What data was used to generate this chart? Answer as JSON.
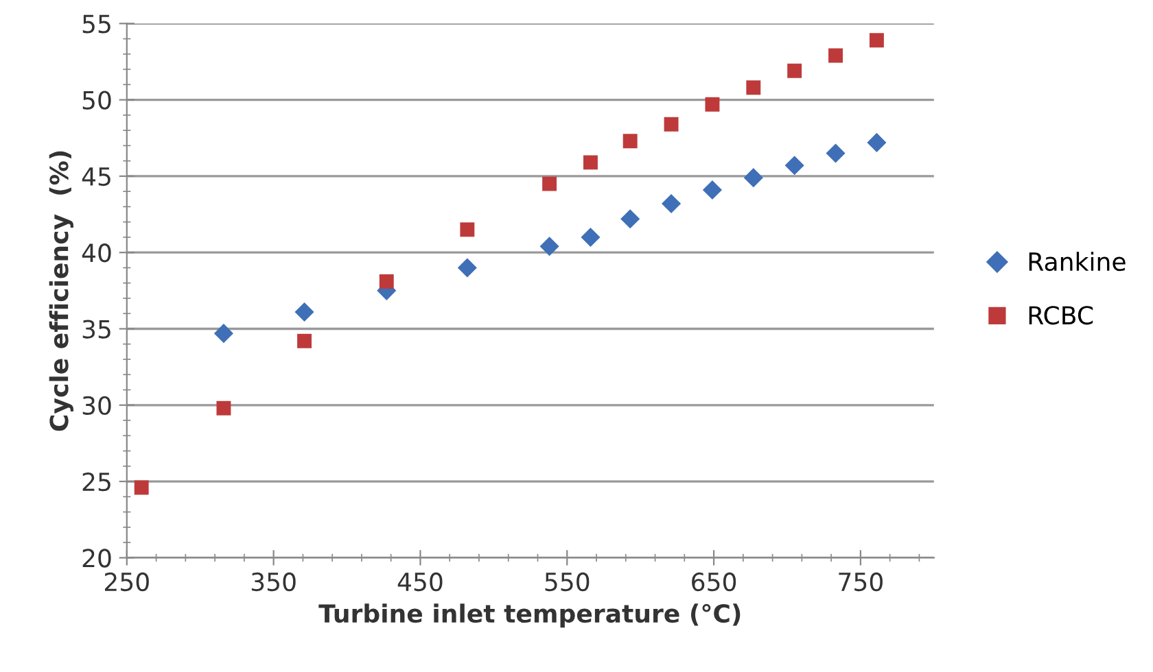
{
  "chart_data": {
    "type": "scatter",
    "xlabel": "Turbine inlet temperature (°C)",
    "ylabel": "Cycle efficiency  (%)",
    "xlim": [
      250,
      800
    ],
    "xticks": [
      250,
      350,
      450,
      550,
      650,
      750
    ],
    "ylim": [
      20,
      55
    ],
    "yticks": [
      20,
      25,
      30,
      35,
      40,
      45,
      50,
      55
    ],
    "grid": "y",
    "legend": "right",
    "series": [
      {
        "name": "Rankine",
        "color": "#3f6fb7",
        "marker": "diamond",
        "x": [
          316,
          371,
          427,
          482,
          538,
          566,
          593,
          621,
          649,
          677,
          705,
          733,
          761
        ],
        "values": [
          34.7,
          36.1,
          37.5,
          39.0,
          40.4,
          41.0,
          42.2,
          43.2,
          44.1,
          44.9,
          45.7,
          46.5,
          47.2
        ]
      },
      {
        "name": "RCBC",
        "color": "#be3a3a",
        "marker": "square",
        "x": [
          260,
          316,
          371,
          427,
          482,
          538,
          566,
          593,
          621,
          649,
          677,
          705,
          733,
          761
        ],
        "values": [
          24.6,
          29.8,
          34.2,
          38.1,
          41.5,
          44.5,
          45.9,
          47.3,
          48.4,
          49.7,
          50.8,
          51.9,
          52.9,
          53.9
        ]
      }
    ]
  }
}
